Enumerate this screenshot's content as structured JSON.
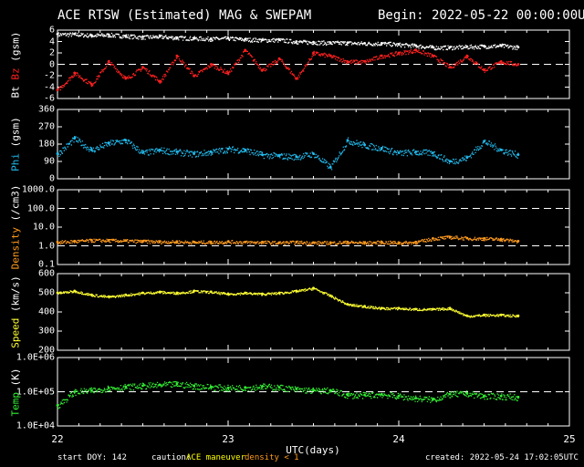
{
  "title": "ACE RTSW (Estimated) MAG & SWEPAM",
  "begin": "Begin: 2022-05-22 00:00:00UTC",
  "footer": {
    "start_doy": "start DOY: 142",
    "caution_label": "caution:",
    "caution_maneuver": "ACE maneuver",
    "caution_density": "density < 1",
    "created": "created: 2022-05-24 17:02:05UTC"
  },
  "xlabel": "UTC(days)",
  "colors": {
    "bt": "#ffffff",
    "bz": "#ff2020",
    "phi": "#22bbee",
    "density": "#ff9a1e",
    "speed": "#ffff33",
    "temp": "#33ee33",
    "axes": "#ffffff",
    "maneuver": "#ffff00"
  },
  "chart_data": [
    {
      "type": "scatter",
      "ylabel_parts": [
        "Bt",
        "Bz",
        "(gsm)"
      ],
      "ylim": [
        -6,
        6
      ],
      "ticks": [
        "6",
        "4",
        "2",
        "0",
        "-2",
        "-4",
        "-6"
      ],
      "x": [
        22.0,
        22.1,
        22.2,
        22.3,
        22.4,
        22.5,
        22.6,
        22.7,
        22.8,
        22.9,
        23.0,
        23.1,
        23.2,
        23.3,
        23.4,
        23.5,
        23.6,
        23.7,
        23.8,
        23.9,
        24.0,
        24.1,
        24.2,
        24.3,
        24.4,
        24.5,
        24.6,
        24.7
      ],
      "series": [
        {
          "name": "Bt",
          "values": [
            5.3,
            5.3,
            5.1,
            5.2,
            5.0,
            4.8,
            4.9,
            4.7,
            4.6,
            4.5,
            4.6,
            4.4,
            4.3,
            4.3,
            4.0,
            3.9,
            3.8,
            3.8,
            3.7,
            3.7,
            3.5,
            3.3,
            3.0,
            3.0,
            3.1,
            3.2,
            3.3,
            3.0
          ]
        },
        {
          "name": "Bz",
          "values": [
            -4.5,
            -1.5,
            -3.5,
            0.5,
            -2.5,
            -0.5,
            -3.0,
            1.5,
            -2.0,
            0.0,
            -1.5,
            2.5,
            -1.0,
            1.0,
            -2.5,
            2.0,
            1.5,
            0.5,
            0.5,
            1.5,
            2.0,
            2.5,
            1.5,
            -0.5,
            1.5,
            -1.0,
            0.5,
            0.0
          ]
        }
      ],
      "dashed_at": [
        0
      ]
    },
    {
      "type": "scatter",
      "ylabel_parts": [
        "Phi",
        "(gsm)"
      ],
      "ylim": [
        0,
        360
      ],
      "ticks": [
        "360",
        "270",
        "180",
        "90",
        "0"
      ],
      "x": [
        22.0,
        22.1,
        22.2,
        22.3,
        22.4,
        22.5,
        22.6,
        22.7,
        22.8,
        22.9,
        23.0,
        23.1,
        23.2,
        23.3,
        23.4,
        23.5,
        23.6,
        23.7,
        23.8,
        23.9,
        24.0,
        24.1,
        24.2,
        24.3,
        24.4,
        24.5,
        24.6,
        24.7
      ],
      "series": [
        {
          "name": "Phi",
          "values": [
            130,
            210,
            150,
            185,
            200,
            135,
            150,
            140,
            130,
            140,
            155,
            150,
            125,
            120,
            115,
            130,
            60,
            200,
            175,
            160,
            135,
            140,
            135,
            90,
            110,
            195,
            150,
            125
          ]
        }
      ]
    },
    {
      "type": "scatter",
      "ylabel_parts": [
        "Density",
        "(/cm3)"
      ],
      "yscale": "log",
      "ylim": [
        0.1,
        1000
      ],
      "ticks": [
        "1000.0",
        "100.0",
        "10.0",
        "1.0",
        "0.1"
      ],
      "x": [
        22.0,
        22.1,
        22.2,
        22.3,
        22.4,
        22.5,
        22.6,
        22.7,
        22.8,
        22.9,
        23.0,
        23.1,
        23.2,
        23.3,
        23.4,
        23.5,
        23.6,
        23.7,
        23.8,
        23.9,
        24.0,
        24.1,
        24.2,
        24.3,
        24.4,
        24.5,
        24.6,
        24.7
      ],
      "series": [
        {
          "name": "Density",
          "values": [
            1.6,
            1.8,
            2.0,
            2.0,
            1.9,
            1.8,
            1.7,
            1.7,
            1.6,
            1.6,
            1.7,
            1.6,
            1.6,
            1.5,
            1.6,
            1.5,
            1.5,
            1.6,
            1.5,
            1.6,
            1.5,
            1.6,
            2.5,
            3.0,
            2.6,
            2.5,
            2.3,
            1.8
          ]
        }
      ],
      "dashed_at": [
        1000,
        100,
        1
      ]
    },
    {
      "type": "scatter",
      "ylabel_parts": [
        "Speed",
        "(km/s)"
      ],
      "ylim": [
        200,
        600
      ],
      "ticks": [
        "600",
        "500",
        "400",
        "300",
        "200"
      ],
      "x": [
        22.0,
        22.1,
        22.2,
        22.3,
        22.4,
        22.5,
        22.6,
        22.7,
        22.8,
        22.9,
        23.0,
        23.1,
        23.2,
        23.3,
        23.4,
        23.5,
        23.6,
        23.7,
        23.8,
        23.9,
        24.0,
        24.1,
        24.2,
        24.3,
        24.4,
        24.5,
        24.6,
        24.7
      ],
      "series": [
        {
          "name": "Speed",
          "values": [
            500,
            510,
            490,
            480,
            490,
            500,
            505,
            500,
            510,
            505,
            495,
            500,
            495,
            500,
            510,
            525,
            485,
            440,
            430,
            420,
            420,
            415,
            415,
            420,
            380,
            385,
            385,
            380
          ]
        }
      ]
    },
    {
      "type": "scatter",
      "ylabel_parts": [
        "Temp",
        "(K)"
      ],
      "yscale": "log",
      "ylim": [
        10000,
        1000000
      ],
      "ticks": [
        "1.0E+06",
        "1.0E+05",
        "1.0E+04"
      ],
      "x": [
        22.0,
        22.1,
        22.2,
        22.3,
        22.4,
        22.5,
        22.6,
        22.7,
        22.8,
        22.9,
        23.0,
        23.1,
        23.2,
        23.3,
        23.4,
        23.5,
        23.6,
        23.7,
        23.8,
        23.9,
        24.0,
        24.1,
        24.2,
        24.3,
        24.4,
        24.5,
        24.6,
        24.7
      ],
      "series": [
        {
          "name": "Temp",
          "values": [
            40000,
            100000,
            110000,
            130000,
            140000,
            150000,
            160000,
            170000,
            150000,
            140000,
            130000,
            135000,
            145000,
            135000,
            120000,
            110000,
            110000,
            80000,
            80000,
            85000,
            75000,
            65000,
            60000,
            85000,
            90000,
            75000,
            75000,
            70000
          ]
        }
      ],
      "dashed_at": [
        100000
      ]
    }
  ],
  "x_axis": {
    "range": [
      22,
      25
    ],
    "tick_labels": [
      "22",
      "23",
      "24",
      "25"
    ]
  }
}
